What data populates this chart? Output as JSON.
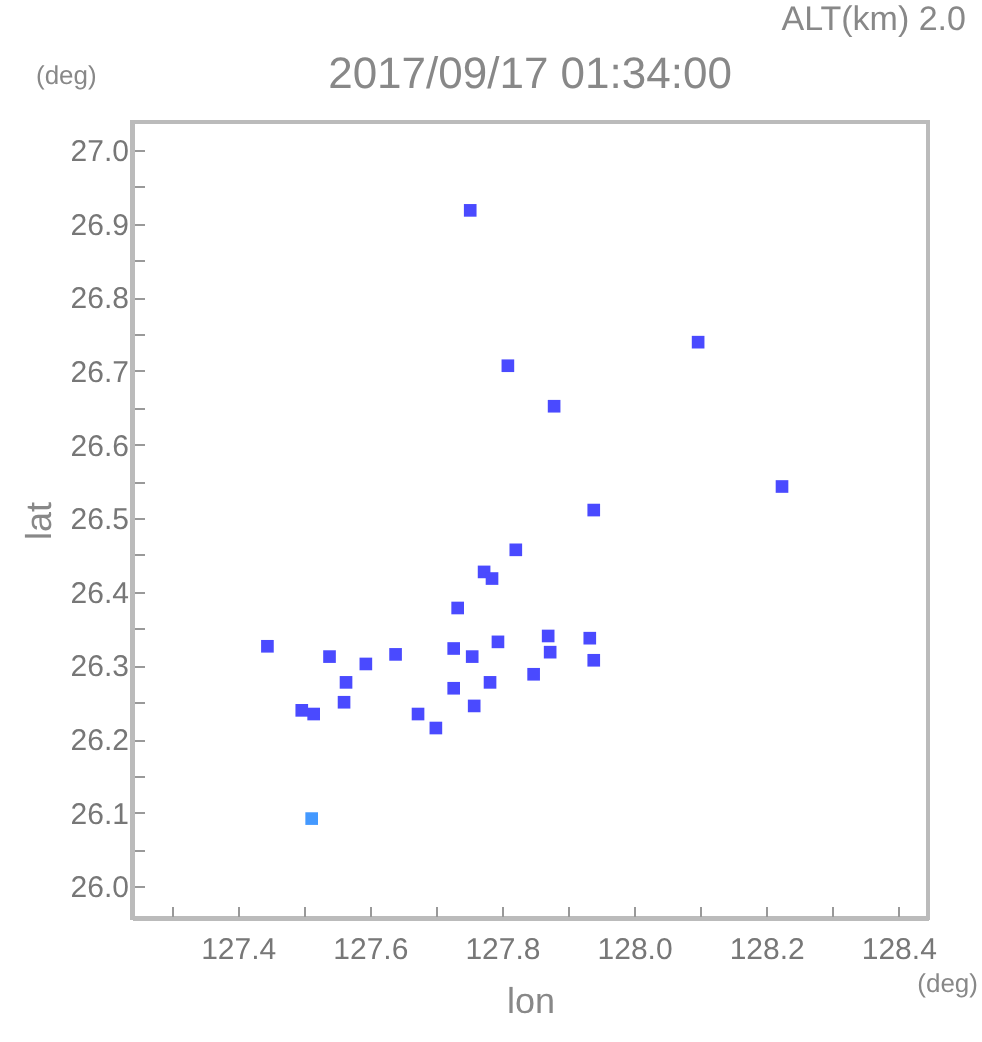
{
  "chart_data": {
    "type": "scatter",
    "title": "2017/09/17 01:34:00",
    "xlabel": "lon",
    "ylabel": "lat",
    "annotations": [
      "ALT(km) 2.0",
      "(deg)",
      "(deg)"
    ],
    "x": [
      127.752,
      127.809,
      127.879,
      128.097,
      128.224,
      127.939,
      127.821,
      127.773,
      127.785,
      127.733,
      127.445,
      127.539,
      127.594,
      127.639,
      127.727,
      127.755,
      127.794,
      127.873,
      127.87,
      127.933,
      127.939,
      127.848,
      127.564,
      127.561,
      127.497,
      127.515,
      127.673,
      127.782,
      127.727,
      127.758,
      127.7,
      127.512
    ],
    "values": [
      26.918,
      26.707,
      26.652,
      26.739,
      26.543,
      26.511,
      26.457,
      26.427,
      26.418,
      26.378,
      26.326,
      26.312,
      26.302,
      26.315,
      26.323,
      26.312,
      26.332,
      26.318,
      26.34,
      26.337,
      26.307,
      26.288,
      26.277,
      26.25,
      26.239,
      26.234,
      26.234,
      26.277,
      26.269,
      26.245,
      26.215,
      26.092
    ],
    "colors": [
      "#4a4aff",
      "#4a4aff",
      "#4a4aff",
      "#4a4aff",
      "#4a4aff",
      "#4a4aff",
      "#4a4aff",
      "#4a4aff",
      "#4a4aff",
      "#4a4aff",
      "#4a4aff",
      "#4a4aff",
      "#4a4aff",
      "#4a4aff",
      "#4a4aff",
      "#4a4aff",
      "#4a4aff",
      "#4a4aff",
      "#4a4aff",
      "#4a4aff",
      "#4a4aff",
      "#4a4aff",
      "#4a4aff",
      "#4a4aff",
      "#4a4aff",
      "#4a4aff",
      "#4a4aff",
      "#4a4aff",
      "#4a4aff",
      "#4a4aff",
      "#4a4aff",
      "#4499ff"
    ],
    "marker": "square",
    "xlim": [
      127.24,
      128.445
    ],
    "ylim": [
      25.957,
      27.038
    ],
    "xticks": [
      {
        "value": 127.3,
        "label": null
      },
      127.4,
      {
        "value": 127.5,
        "label": null
      },
      127.6,
      {
        "value": 127.7,
        "label": null
      },
      127.8,
      {
        "value": 127.9,
        "label": null
      },
      {
        "value": 128,
        "label": "128.0"
      },
      {
        "value": 128.1,
        "label": null
      },
      128.2,
      {
        "value": 128.3,
        "label": null
      },
      128.4
    ],
    "yticks": [
      {
        "value": 26,
        "label": "26.0"
      },
      {
        "value": 26.05,
        "label": null
      },
      26.1,
      {
        "value": 26.15,
        "label": null
      },
      26.2,
      {
        "value": 26.25,
        "label": null
      },
      26.3,
      {
        "value": 26.35,
        "label": null
      },
      26.4,
      {
        "value": 26.45,
        "label": null
      },
      26.5,
      {
        "value": 26.55,
        "label": null
      },
      26.6,
      {
        "value": 26.65,
        "label": null
      },
      26.7,
      {
        "value": 26.75,
        "label": null
      },
      26.8,
      {
        "value": 26.85,
        "label": null
      },
      26.9,
      {
        "value": 26.95,
        "label": null
      },
      {
        "value": 27,
        "label": "27.0"
      }
    ]
  }
}
